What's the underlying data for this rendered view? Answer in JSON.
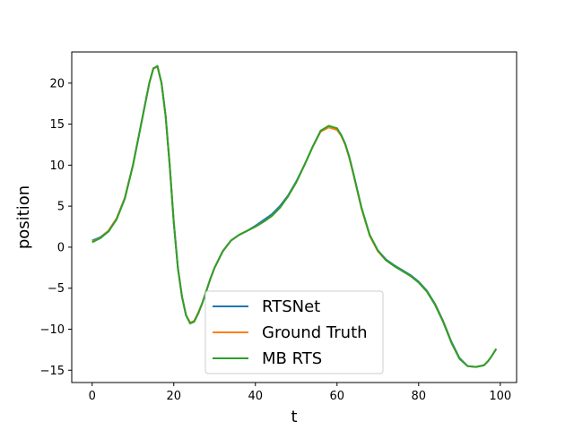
{
  "chart_data": {
    "type": "line",
    "title": "",
    "xlabel": "t",
    "ylabel": "position",
    "xlim": [
      -5,
      104
    ],
    "ylim": [
      -16.5,
      23.8
    ],
    "xticks": [
      0,
      20,
      40,
      60,
      80,
      100
    ],
    "yticks": [
      -15,
      -10,
      -5,
      0,
      5,
      10,
      15,
      20
    ],
    "xtick_labels": [
      "0",
      "20",
      "40",
      "60",
      "80",
      "100"
    ],
    "ytick_labels": [
      "−15",
      "−10",
      "−5",
      "0",
      "5",
      "10",
      "15",
      "20"
    ],
    "grid": false,
    "legend_position": "lower-center",
    "series": [
      {
        "name": "RTSNet",
        "color": "#1f77b4",
        "x": [
          0,
          2,
          4,
          6,
          8,
          10,
          12,
          14,
          15,
          16,
          17,
          18,
          19,
          20,
          21,
          22,
          23,
          24,
          25,
          26,
          27,
          28,
          29,
          30,
          32,
          34,
          36,
          38,
          40,
          42,
          44,
          46,
          48,
          50,
          52,
          54,
          56,
          58,
          60,
          61,
          62,
          63,
          64,
          66,
          68,
          70,
          72,
          74,
          76,
          78,
          80,
          82,
          84,
          86,
          88,
          90,
          92,
          94,
          96,
          97,
          98,
          99
        ],
        "y": [
          0.8,
          1.2,
          2.0,
          3.5,
          6.0,
          10.0,
          15.0,
          20.0,
          21.8,
          22.0,
          20.0,
          16.0,
          10.0,
          3.0,
          -2.5,
          -6.0,
          -8.3,
          -9.2,
          -9.0,
          -8.0,
          -6.8,
          -5.3,
          -3.8,
          -2.5,
          -0.5,
          0.8,
          1.5,
          2.0,
          2.6,
          3.3,
          4.0,
          5.0,
          6.3,
          8.0,
          10.0,
          12.2,
          14.2,
          14.7,
          14.4,
          13.7,
          12.6,
          11.0,
          9.0,
          4.8,
          1.5,
          -0.4,
          -1.5,
          -2.2,
          -2.8,
          -3.4,
          -4.2,
          -5.3,
          -6.9,
          -9.0,
          -11.5,
          -13.5,
          -14.5,
          -14.6,
          -14.4,
          -13.9,
          -13.2,
          -12.4
        ]
      },
      {
        "name": "Ground Truth",
        "color": "#ff7f0e",
        "x": [
          0,
          2,
          4,
          6,
          8,
          10,
          12,
          14,
          15,
          16,
          17,
          18,
          19,
          20,
          21,
          22,
          23,
          24,
          25,
          26,
          27,
          28,
          29,
          30,
          32,
          34,
          36,
          38,
          40,
          42,
          44,
          46,
          48,
          50,
          52,
          54,
          56,
          58,
          60,
          61,
          62,
          63,
          64,
          66,
          68,
          70,
          72,
          74,
          76,
          78,
          80,
          82,
          84,
          86,
          88,
          90,
          92,
          94,
          96,
          97,
          98,
          99
        ],
        "y": [
          0.7,
          1.1,
          2.0,
          3.5,
          6.0,
          10.0,
          15.0,
          20.0,
          21.8,
          22.0,
          20.0,
          16.0,
          10.0,
          3.0,
          -2.5,
          -6.0,
          -8.3,
          -9.2,
          -9.0,
          -8.0,
          -6.8,
          -5.3,
          -3.8,
          -2.5,
          -0.5,
          0.8,
          1.5,
          2.0,
          2.5,
          3.1,
          3.8,
          4.8,
          6.2,
          7.9,
          10.0,
          12.2,
          14.1,
          14.6,
          14.3,
          13.6,
          12.5,
          10.9,
          8.9,
          4.7,
          1.4,
          -0.5,
          -1.6,
          -2.3,
          -2.9,
          -3.5,
          -4.3,
          -5.4,
          -7.0,
          -9.1,
          -11.6,
          -13.6,
          -14.5,
          -14.6,
          -14.4,
          -13.9,
          -13.2,
          -12.4
        ]
      },
      {
        "name": "MB RTS",
        "color": "#2ca02c",
        "x": [
          0,
          2,
          4,
          6,
          8,
          10,
          12,
          14,
          15,
          16,
          17,
          18,
          19,
          20,
          21,
          22,
          23,
          24,
          25,
          26,
          27,
          28,
          29,
          30,
          32,
          34,
          36,
          38,
          40,
          42,
          44,
          46,
          48,
          50,
          52,
          54,
          56,
          58,
          60,
          61,
          62,
          63,
          64,
          66,
          68,
          70,
          72,
          74,
          76,
          78,
          80,
          82,
          84,
          86,
          88,
          90,
          92,
          94,
          96,
          97,
          98,
          99
        ],
        "y": [
          0.6,
          1.1,
          1.9,
          3.4,
          5.9,
          10.0,
          15.0,
          20.0,
          21.8,
          22.1,
          20.0,
          16.0,
          10.0,
          3.0,
          -2.5,
          -6.0,
          -8.3,
          -9.3,
          -9.1,
          -8.1,
          -6.8,
          -5.3,
          -3.8,
          -2.5,
          -0.5,
          0.8,
          1.5,
          2.0,
          2.5,
          3.1,
          3.8,
          4.8,
          6.2,
          7.9,
          10.0,
          12.2,
          14.2,
          14.8,
          14.5,
          13.7,
          12.6,
          11.0,
          9.0,
          4.8,
          1.5,
          -0.4,
          -1.6,
          -2.3,
          -2.9,
          -3.5,
          -4.3,
          -5.4,
          -7.0,
          -9.1,
          -11.6,
          -13.6,
          -14.5,
          -14.6,
          -14.4,
          -13.9,
          -13.2,
          -12.4
        ]
      }
    ]
  }
}
